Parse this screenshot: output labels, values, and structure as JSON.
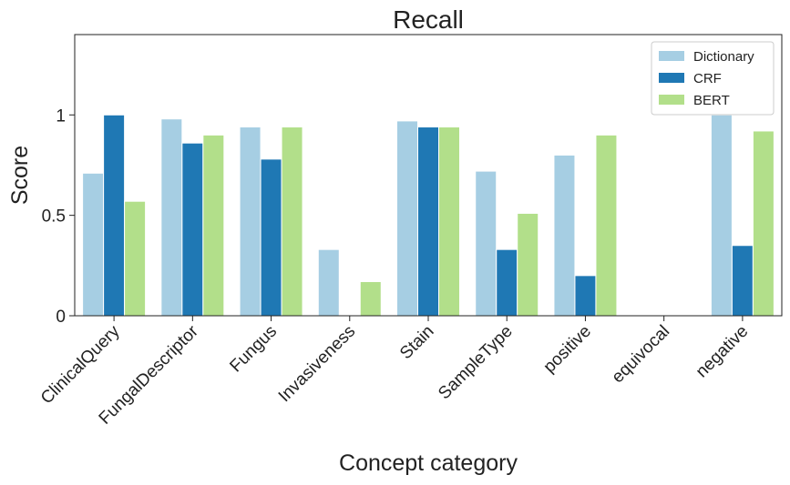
{
  "chart_data": {
    "type": "bar",
    "title": "Recall",
    "xlabel": "Concept category",
    "ylabel": "Score",
    "ylim": [
      0,
      1.4
    ],
    "yticks": [
      0,
      0.5,
      1
    ],
    "ytick_labels": [
      "0",
      "0.5",
      "1"
    ],
    "categories": [
      "ClinicalQuery",
      "FungalDescriptor",
      "Fungus",
      "Invasiveness",
      "Stain",
      "SampleType",
      "positive",
      "equivocal",
      "negative"
    ],
    "series": [
      {
        "name": "Dictionary",
        "color": "#a6cee3",
        "values": [
          0.71,
          0.98,
          0.94,
          0.33,
          0.97,
          0.72,
          0.8,
          0.0,
          1.0
        ]
      },
      {
        "name": "CRF",
        "color": "#1f78b4",
        "values": [
          1.0,
          0.86,
          0.78,
          0.0,
          0.94,
          0.33,
          0.2,
          0.0,
          0.35
        ]
      },
      {
        "name": "BERT",
        "color": "#b2df8a",
        "values": [
          0.57,
          0.9,
          0.94,
          0.17,
          0.94,
          0.51,
          0.9,
          0.0,
          0.92
        ]
      }
    ],
    "legend_position": "top-right",
    "grid": false
  }
}
